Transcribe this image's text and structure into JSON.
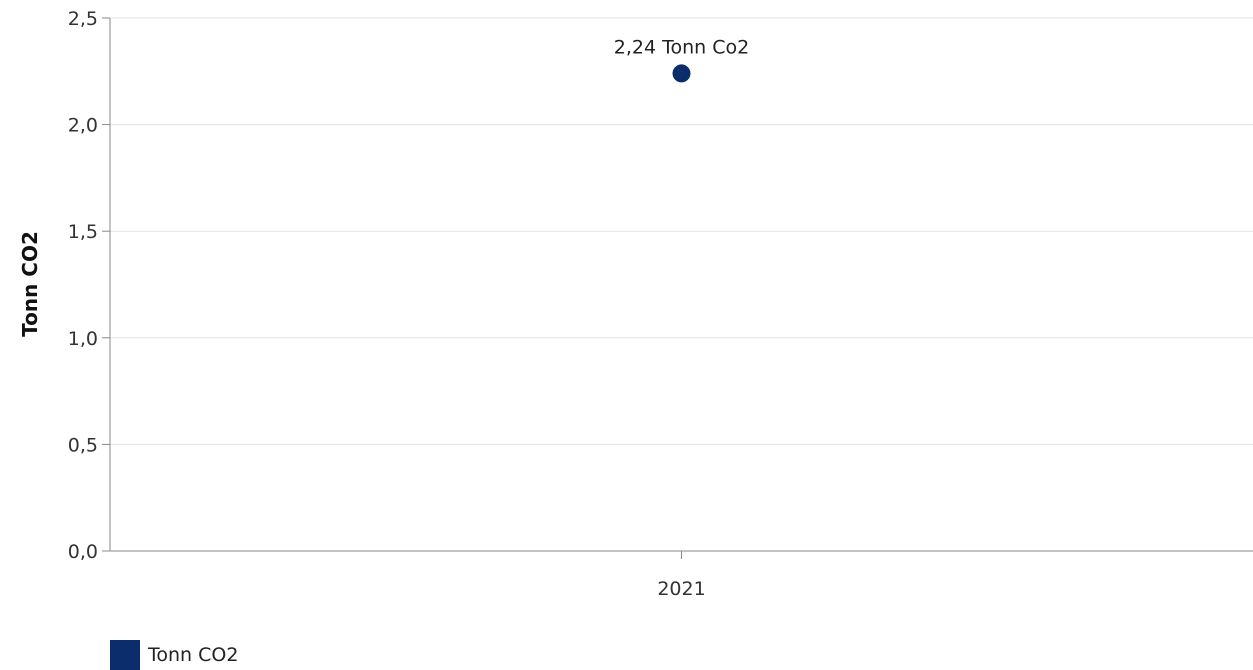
{
  "chart_data": {
    "type": "scatter",
    "categories": [
      "2021"
    ],
    "series": [
      {
        "name": "Tonn CO2",
        "values": [
          2.24
        ],
        "color": "#0b2d6b",
        "data_labels": [
          "2,24 Tonn Co2"
        ]
      }
    ],
    "ylabel": "Tonn CO2",
    "ylim": [
      0,
      2.5
    ],
    "yticks": [
      0,
      0.5,
      1.0,
      1.5,
      2.0,
      2.5
    ],
    "ytick_labels": [
      "0,0",
      "0,5",
      "1,0",
      "1,5",
      "2,0",
      "2,5"
    ],
    "grid": true,
    "legend_position": "bottom-left"
  }
}
